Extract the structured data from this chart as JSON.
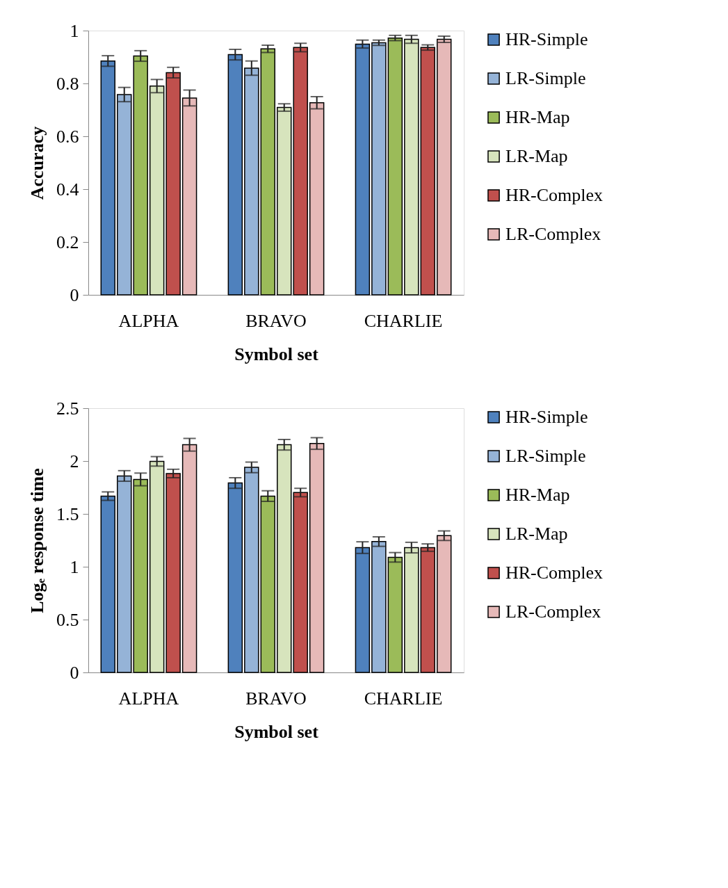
{
  "chart_data": [
    {
      "type": "bar",
      "xlabel": "Symbol set",
      "ylabel": "Accuracy",
      "categories": [
        "ALPHA",
        "BRAVO",
        "CHARLIE"
      ],
      "ylim": [
        0,
        1
      ],
      "yticks": [
        0,
        0.2,
        0.4,
        0.6,
        0.8,
        1
      ],
      "grid": false,
      "legend": "right",
      "series": [
        {
          "name": "HR-Simple",
          "color": "#4f81bd",
          "values": [
            0.885,
            0.909,
            0.949
          ],
          "errors": [
            0.02,
            0.02,
            0.015
          ]
        },
        {
          "name": "LR-Simple",
          "color": "#95b3d7",
          "values": [
            0.758,
            0.858,
            0.954
          ],
          "errors": [
            0.027,
            0.027,
            0.01
          ]
        },
        {
          "name": "HR-Map",
          "color": "#9bbb59",
          "values": [
            0.904,
            0.931,
            0.972
          ],
          "errors": [
            0.02,
            0.014,
            0.01
          ]
        },
        {
          "name": "LR-Map",
          "color": "#d7e4bd",
          "values": [
            0.79,
            0.709,
            0.967
          ],
          "errors": [
            0.025,
            0.014,
            0.015
          ]
        },
        {
          "name": "HR-Complex",
          "color": "#c0504d",
          "values": [
            0.841,
            0.936,
            0.936
          ],
          "errors": [
            0.02,
            0.016,
            0.01
          ]
        },
        {
          "name": "LR-Complex",
          "color": "#e6b9b8",
          "values": [
            0.745,
            0.727,
            0.967
          ],
          "errors": [
            0.03,
            0.023,
            0.012
          ]
        }
      ]
    },
    {
      "type": "bar",
      "xlabel": "Symbol set",
      "ylabel": "Logₑ response time",
      "categories": [
        "ALPHA",
        "BRAVO",
        "CHARLIE"
      ],
      "ylim": [
        0,
        2.5
      ],
      "yticks": [
        0,
        0.5,
        1,
        1.5,
        2,
        2.5
      ],
      "grid": false,
      "legend": "right",
      "series": [
        {
          "name": "HR-Simple",
          "color": "#4f81bd",
          "values": [
            1.668,
            1.792,
            1.181
          ],
          "errors": [
            0.04,
            0.05,
            0.055
          ]
        },
        {
          "name": "LR-Simple",
          "color": "#95b3d7",
          "values": [
            1.859,
            1.94,
            1.238
          ],
          "errors": [
            0.05,
            0.05,
            0.045
          ]
        },
        {
          "name": "HR-Map",
          "color": "#9bbb59",
          "values": [
            1.826,
            1.668,
            1.089
          ],
          "errors": [
            0.06,
            0.05,
            0.045
          ]
        },
        {
          "name": "LR-Map",
          "color": "#d7e4bd",
          "values": [
            1.997,
            2.154,
            1.181
          ],
          "errors": [
            0.045,
            0.05,
            0.05
          ]
        },
        {
          "name": "HR-Complex",
          "color": "#c0504d",
          "values": [
            1.882,
            1.702,
            1.181
          ],
          "errors": [
            0.04,
            0.04,
            0.035
          ]
        },
        {
          "name": "LR-Complex",
          "color": "#e6b9b8",
          "values": [
            2.154,
            2.166,
            1.294
          ],
          "errors": [
            0.06,
            0.055,
            0.045
          ]
        }
      ]
    }
  ]
}
